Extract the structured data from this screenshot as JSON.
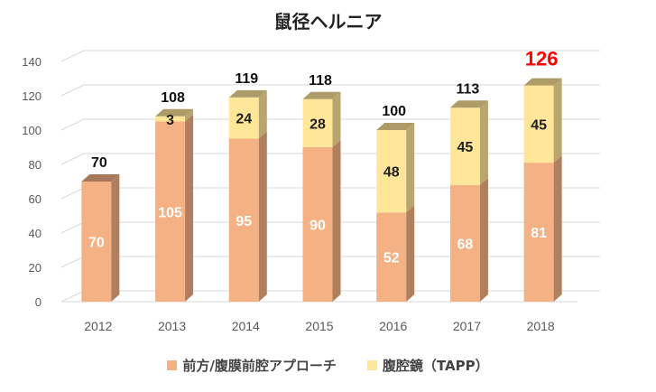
{
  "chart_data": {
    "type": "bar",
    "stacked": true,
    "three_d": true,
    "title": "鼠径ヘルニア",
    "categories": [
      "2012",
      "2013",
      "2014",
      "2015",
      "2016",
      "2017",
      "2018"
    ],
    "series": [
      {
        "name": "前方/腹膜前腔アプローチ",
        "values": [
          70,
          105,
          95,
          90,
          52,
          68,
          81
        ],
        "color": "#F4B183"
      },
      {
        "name": "腹腔鏡（TAPP）",
        "values": [
          0,
          3,
          24,
          28,
          48,
          45,
          45
        ],
        "color": "#FFE699"
      }
    ],
    "totals": [
      "70",
      "108",
      "119",
      "118",
      "100",
      "113",
      "126"
    ],
    "highlight_total_color": "#FF0000",
    "highlight_index": 6,
    "ylim": [
      0,
      140
    ],
    "yticks": [
      0,
      20,
      40,
      60,
      80,
      100,
      120,
      140
    ],
    "grid": true,
    "legend_position": "bottom"
  }
}
